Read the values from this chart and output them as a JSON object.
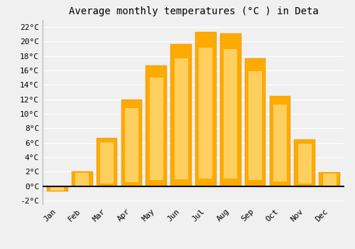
{
  "title": "Average monthly temperatures (°C ) in Deta",
  "months": [
    "Jan",
    "Feb",
    "Mar",
    "Apr",
    "May",
    "Jun",
    "Jul",
    "Aug",
    "Sep",
    "Oct",
    "Nov",
    "Dec"
  ],
  "values": [
    -0.7,
    2.0,
    6.7,
    12.0,
    16.7,
    19.7,
    21.3,
    21.1,
    17.7,
    12.5,
    6.5,
    1.9
  ],
  "bar_color": "#FFAA00",
  "bar_color_light": "#FFD060",
  "bar_edge_color": "#CC8800",
  "ylim": [
    -2.5,
    23
  ],
  "yticks": [
    -2,
    0,
    2,
    4,
    6,
    8,
    10,
    12,
    14,
    16,
    18,
    20,
    22
  ],
  "background_color": "#F0F0F0",
  "plot_bg_color": "#F0F0F0",
  "grid_color": "#FFFFFF",
  "title_fontsize": 10,
  "tick_fontsize": 8,
  "font_family": "monospace"
}
